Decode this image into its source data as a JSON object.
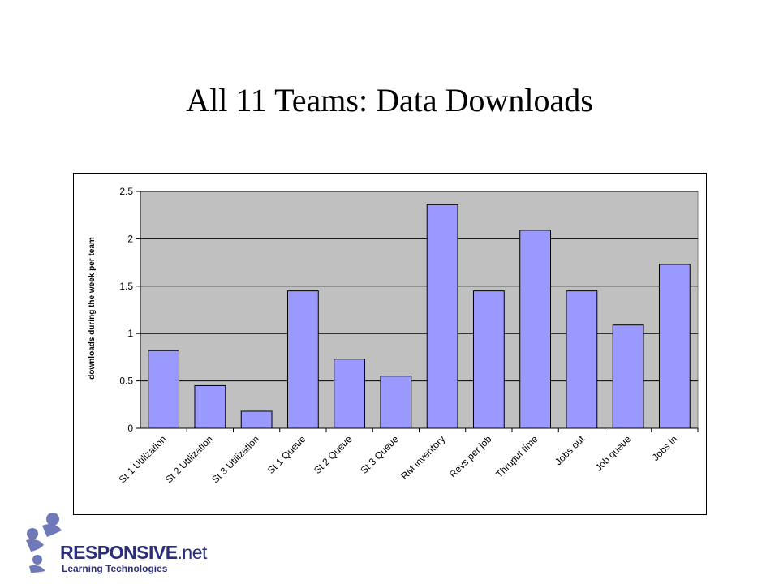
{
  "slide": {
    "title": "All 11 Teams: Data Downloads"
  },
  "logo": {
    "brand_main": "RESPONSIVE",
    "brand_tld": ".net",
    "subtitle": "Learning Technologies",
    "color": "#2b2e7a",
    "accent": "#6f78b8"
  },
  "chart_data": {
    "type": "bar",
    "title": "",
    "xlabel": "",
    "ylabel": "downloads during the week per team",
    "categories": [
      "St 1 Utilization",
      "St 2 Utilization",
      "St 3 Utilization",
      "St 1 Queue",
      "St 2 Queue",
      "St 3 Queue",
      "RM inventory",
      "Revs per job",
      "Thruput time",
      "Jobs out",
      "Job queue",
      "Jobs in"
    ],
    "values": [
      0.82,
      0.45,
      0.18,
      1.45,
      0.73,
      0.55,
      2.36,
      1.45,
      2.09,
      1.45,
      1.09,
      1.73
    ],
    "ylim": [
      0,
      2.5
    ],
    "yticks": [
      "0",
      "0.5",
      "1",
      "1.5",
      "2",
      "2.5"
    ],
    "grid": true,
    "legend": "none",
    "colors": {
      "bar": "#9999ff",
      "plot_background": "#c0c0c0",
      "outline": "#000000"
    }
  }
}
